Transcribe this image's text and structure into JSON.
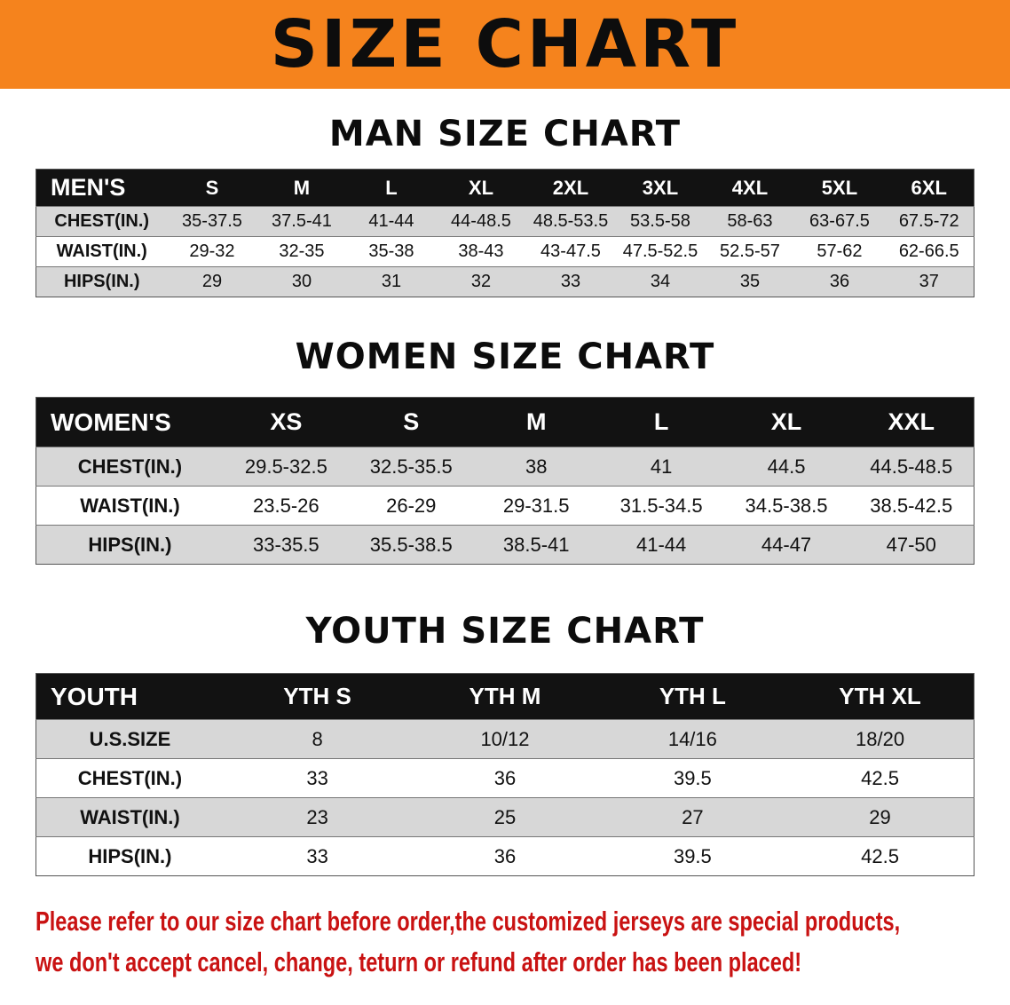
{
  "banner": {
    "title": "SIZE CHART"
  },
  "colors": {
    "banner_bg": "#f5831d",
    "table_header_bg": "#121212",
    "row_alt_bg": "#d7d7d7",
    "footer_text": "#c91212"
  },
  "sections": [
    {
      "id": "mens",
      "title": "MAN SIZE CHART",
      "header": [
        "MEN'S",
        "S",
        "M",
        "L",
        "XL",
        "2XL",
        "3XL",
        "4XL",
        "5XL",
        "6XL"
      ],
      "rows": [
        [
          "CHEST(IN.)",
          "35-37.5",
          "37.5-41",
          "41-44",
          "44-48.5",
          "48.5-53.5",
          "53.5-58",
          "58-63",
          "63-67.5",
          "67.5-72"
        ],
        [
          "WAIST(IN.)",
          "29-32",
          "32-35",
          "35-38",
          "38-43",
          "43-47.5",
          "47.5-52.5",
          "52.5-57",
          "57-62",
          "62-66.5"
        ],
        [
          "HIPS(IN.)",
          "29",
          "30",
          "31",
          "32",
          "33",
          "34",
          "35",
          "36",
          "37"
        ]
      ]
    },
    {
      "id": "womens",
      "title": "WOMEN SIZE CHART",
      "header": [
        "WOMEN'S",
        "XS",
        "S",
        "M",
        "L",
        "XL",
        "XXL"
      ],
      "rows": [
        [
          "CHEST(IN.)",
          "29.5-32.5",
          "32.5-35.5",
          "38",
          "41",
          "44.5",
          "44.5-48.5"
        ],
        [
          "WAIST(IN.)",
          "23.5-26",
          "26-29",
          "29-31.5",
          "31.5-34.5",
          "34.5-38.5",
          "38.5-42.5"
        ],
        [
          "HIPS(IN.)",
          "33-35.5",
          "35.5-38.5",
          "38.5-41",
          "41-44",
          "44-47",
          "47-50"
        ]
      ]
    },
    {
      "id": "youth",
      "title": "YOUTH SIZE CHART",
      "header": [
        "YOUTH",
        "YTH S",
        "YTH M",
        "YTH L",
        "YTH XL"
      ],
      "rows": [
        [
          "U.S.SIZE",
          "8",
          "10/12",
          "14/16",
          "18/20"
        ],
        [
          "CHEST(IN.)",
          "33",
          "36",
          "39.5",
          "42.5"
        ],
        [
          "WAIST(IN.)",
          "23",
          "25",
          "27",
          "29"
        ],
        [
          "HIPS(IN.)",
          "33",
          "36",
          "39.5",
          "42.5"
        ]
      ]
    }
  ],
  "footer": {
    "lines": [
      "Please refer to our size chart before order,the customized jerseys are special products,",
      "we don't accept cancel, change, teturn or refund after order has been placed!"
    ]
  }
}
